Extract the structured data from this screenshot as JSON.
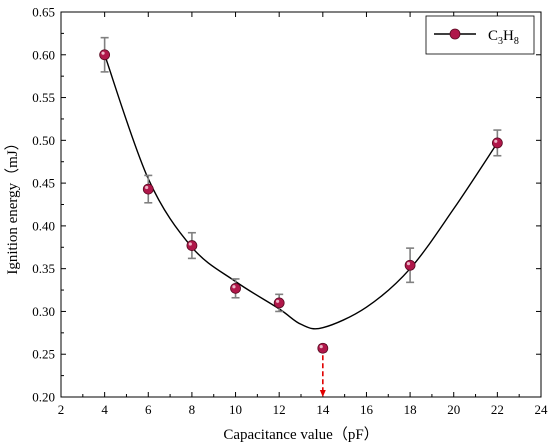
{
  "chart_data": {
    "type": "scatter",
    "title": "",
    "xlabel": "Capacitance value（pF）",
    "ylabel": "Ignition energy（mJ）",
    "xlim": [
      2,
      24
    ],
    "ylim": [
      0.2,
      0.65
    ],
    "xticks": [
      2,
      4,
      6,
      8,
      10,
      12,
      14,
      16,
      18,
      20,
      22,
      24
    ],
    "yticks": [
      "0.20",
      "0.25",
      "0.30",
      "0.35",
      "0.40",
      "0.45",
      "0.50",
      "0.55",
      "0.60",
      "0.65"
    ],
    "grid": false,
    "legend_position": "top-right",
    "series": [
      {
        "name": "C3H8",
        "legend_label": {
          "base1": "C",
          "sub1": "3",
          "base2": "H",
          "sub2": "8"
        },
        "marker_color": "#b0174a",
        "line_color": "#000000",
        "x": [
          4,
          6,
          8,
          10,
          12,
          14,
          18,
          22
        ],
        "y": [
          0.6,
          0.443,
          0.377,
          0.327,
          0.31,
          0.257,
          0.354,
          0.497
        ],
        "err": [
          0.02,
          0.016,
          0.015,
          0.011,
          0.01,
          0.004,
          0.02,
          0.015
        ],
        "fit_curve": {
          "x": [
            4,
            6,
            8,
            10,
            12,
            13,
            14,
            16,
            18,
            20,
            22
          ],
          "y": [
            0.6,
            0.455,
            0.375,
            0.335,
            0.303,
            0.285,
            0.281,
            0.305,
            0.35,
            0.42,
            0.497
          ]
        }
      }
    ],
    "annotation": {
      "type": "vertical-dashed-arrow",
      "x": 14,
      "from_y": 0.257,
      "to_y": 0.2,
      "color": "#e00000"
    }
  }
}
